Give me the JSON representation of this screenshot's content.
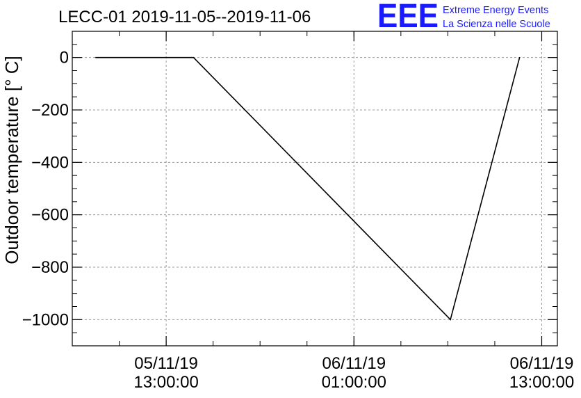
{
  "header": {
    "title": "LECC-01 2019-11-05--2019-11-06",
    "logo_text": "EEE",
    "logo_line1": "Extreme Energy Events",
    "logo_line2": "La Scienza nelle Scuole"
  },
  "colors": {
    "logo": "#1a1aff",
    "line": "#000000",
    "grid": "#999999"
  },
  "chart_data": {
    "type": "line",
    "ylabel": "Outdoor temperature [° C]",
    "xlabel": "",
    "grid": true,
    "ylim": [
      -1100,
      100
    ],
    "xlim": [
      "2019-11-05 07:00",
      "2019-11-06 14:00"
    ],
    "y_ticks": [
      0,
      -200,
      -400,
      -600,
      -800,
      -1000
    ],
    "y_tick_labels": [
      "0",
      "−200",
      "−400",
      "−600",
      "−800",
      "−1000"
    ],
    "x_ticks": [
      {
        "x": "2019-11-05 13:00",
        "label_date": "05/11/19",
        "label_time": "13:00:00"
      },
      {
        "x": "2019-11-06 01:00",
        "label_date": "06/11/19",
        "label_time": "01:00:00"
      },
      {
        "x": "2019-11-06 13:00",
        "label_date": "06/11/19",
        "label_time": "13:00:00"
      }
    ],
    "series": [
      {
        "x": [
          "2019-11-05 08:30",
          "2019-11-05 14:45",
          "2019-11-06 07:10",
          "2019-11-06 11:35"
        ],
        "values": [
          0,
          0,
          -1000,
          0
        ]
      }
    ]
  }
}
